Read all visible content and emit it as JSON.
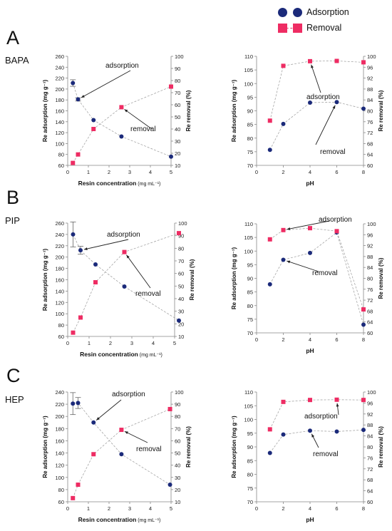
{
  "legend": {
    "adsorption": "Adsorption",
    "removal": "Removal",
    "adsorption_color": "#1b2a7a",
    "removal_color": "#ee2c63"
  },
  "rows": [
    {
      "letter": "A",
      "name": "BAPA"
    },
    {
      "letter": "B",
      "name": "PIP"
    },
    {
      "letter": "C",
      "name": "HEP"
    }
  ],
  "chart_data": [
    {
      "id": "A-left",
      "type": "line",
      "xlabel": "Resin concentration",
      "xlabel_unit": "(mg mL⁻¹)",
      "ylabel": "Re adsorption (mg g⁻¹)",
      "y2label": "Re removal (%)",
      "xlim": [
        0,
        5
      ],
      "xticks": [
        0,
        1,
        2,
        3,
        4,
        5
      ],
      "ylim": [
        60,
        260
      ],
      "yticks": [
        60,
        80,
        100,
        120,
        140,
        160,
        180,
        200,
        220,
        240,
        260
      ],
      "y2lim": [
        10,
        100
      ],
      "y2ticks": [
        10,
        20,
        30,
        40,
        50,
        60,
        70,
        80,
        90,
        100
      ],
      "series": [
        {
          "axis": "left",
          "x": [
            0.25,
            0.5,
            1.25,
            2.6,
            5.0
          ],
          "values": [
            211,
            181,
            143,
            113,
            76
          ],
          "err": [
            6,
            3,
            0,
            0,
            0
          ]
        },
        {
          "axis": "right",
          "x": [
            0.25,
            0.5,
            1.25,
            2.6,
            5.0
          ],
          "values": [
            12,
            19,
            40,
            58,
            75
          ]
        }
      ],
      "annotations": [
        {
          "text": "adsorption",
          "series": 0,
          "point": 1
        },
        {
          "text": "removal",
          "series": 1,
          "point": 3
        }
      ]
    },
    {
      "id": "A-right",
      "type": "line",
      "xlabel": "pH",
      "xlabel_unit": "",
      "ylabel": "Re adsorption (mg g⁻¹)",
      "y2label": "Re removal (%)",
      "xlim": [
        0,
        8
      ],
      "xticks": [
        0,
        2,
        4,
        6,
        8
      ],
      "ylim": [
        70,
        110
      ],
      "yticks": [
        70,
        75,
        80,
        85,
        90,
        95,
        100,
        105,
        110
      ],
      "y2lim": [
        60,
        100
      ],
      "y2ticks": [
        60,
        64,
        68,
        72,
        76,
        80,
        84,
        88,
        92,
        96,
        100
      ],
      "series": [
        {
          "axis": "left",
          "x": [
            1,
            2,
            4,
            6,
            8
          ],
          "values": [
            75.7,
            85.2,
            93.0,
            93.2,
            90.8
          ],
          "err": [
            0,
            0,
            0,
            0,
            0
          ]
        },
        {
          "axis": "right",
          "x": [
            1,
            2,
            4,
            6,
            8
          ],
          "values": [
            76.4,
            96.5,
            98.2,
            98.3,
            97.8
          ]
        }
      ],
      "annotations": [
        {
          "text": "adsorption",
          "series": 1,
          "point": 2
        },
        {
          "text": "removal",
          "series": 0,
          "point": 3
        }
      ]
    },
    {
      "id": "B-left",
      "type": "line",
      "xlabel": "Resin concentration",
      "xlabel_unit": "(mg mL⁻¹)",
      "ylabel": "Re adsorption (mg g⁻¹)",
      "y2label": "Re removal (%)",
      "xlim": [
        0,
        5
      ],
      "xticks": [
        0,
        1,
        2,
        3,
        4,
        5
      ],
      "ylim": [
        60,
        260
      ],
      "yticks": [
        60,
        80,
        100,
        120,
        140,
        160,
        180,
        200,
        220,
        240,
        260
      ],
      "y2lim": [
        10,
        100
      ],
      "y2ticks": [
        10,
        20,
        30,
        40,
        50,
        60,
        70,
        80,
        90,
        100
      ],
      "series": [
        {
          "axis": "left",
          "x": [
            0.25,
            0.6,
            1.3,
            2.65,
            5.2
          ],
          "values": [
            240,
            212,
            187,
            148,
            88
          ],
          "err": [
            22,
            7,
            0,
            0,
            0
          ]
        },
        {
          "axis": "right",
          "x": [
            0.25,
            0.6,
            1.3,
            2.65,
            5.2
          ],
          "values": [
            13,
            25,
            53,
            77,
            92
          ]
        }
      ],
      "annotations": [
        {
          "text": "adsorption",
          "series": 0,
          "point": 1
        },
        {
          "text": "removal",
          "series": 1,
          "point": 3
        }
      ]
    },
    {
      "id": "B-right",
      "type": "line",
      "xlabel": "pH",
      "xlabel_unit": "",
      "ylabel": "Re adsorption (mg g⁻¹)",
      "y2label": "Re removal (%)",
      "xlim": [
        0,
        8
      ],
      "xticks": [
        0,
        2,
        4,
        6,
        8
      ],
      "ylim": [
        70,
        110
      ],
      "yticks": [
        70,
        75,
        80,
        85,
        90,
        95,
        100,
        105,
        110
      ],
      "y2lim": [
        60,
        100
      ],
      "y2ticks": [
        60,
        64,
        68,
        72,
        76,
        80,
        84,
        88,
        92,
        96,
        100
      ],
      "series": [
        {
          "axis": "left",
          "x": [
            1,
            2,
            4,
            6,
            8
          ],
          "values": [
            87.8,
            96.8,
            99.3,
            106.8,
            73.0
          ],
          "err": [
            0,
            0,
            0,
            0,
            0
          ]
        },
        {
          "axis": "right",
          "x": [
            1,
            2,
            4,
            6,
            8
          ],
          "values": [
            94.3,
            97.7,
            98.4,
            97.3,
            68.6
          ]
        }
      ],
      "annotations": [
        {
          "text": "adsorption",
          "series": 1,
          "point": 1
        },
        {
          "text": "removal",
          "series": 0,
          "point": 1
        }
      ]
    },
    {
      "id": "C-left",
      "type": "line",
      "xlabel": "Resin concentration",
      "xlabel_unit": "(mg mL⁻¹)",
      "ylabel": "Re adsorption (mg g⁻¹)",
      "y2label": "Re removal (%)",
      "xlim": [
        0,
        5
      ],
      "xticks": [
        0,
        1,
        2,
        3,
        4,
        5
      ],
      "ylim": [
        60,
        240
      ],
      "yticks": [
        60,
        80,
        100,
        120,
        140,
        160,
        180,
        200,
        220,
        240
      ],
      "y2lim": [
        10,
        100
      ],
      "y2ticks": [
        10,
        20,
        30,
        40,
        50,
        60,
        70,
        80,
        90,
        100
      ],
      "series": [
        {
          "axis": "left",
          "x": [
            0.25,
            0.5,
            1.25,
            2.6,
            4.95
          ],
          "values": [
            221,
            222,
            190,
            138,
            88
          ],
          "err": [
            18,
            9,
            0,
            0,
            0
          ]
        },
        {
          "axis": "right",
          "x": [
            0.25,
            0.5,
            1.25,
            2.6,
            4.95
          ],
          "values": [
            13,
            24,
            49,
            69,
            86
          ]
        }
      ],
      "annotations": [
        {
          "text": "adsorption",
          "series": 0,
          "point": 2
        },
        {
          "text": "removal",
          "series": 1,
          "point": 3
        }
      ]
    },
    {
      "id": "C-right",
      "type": "line",
      "xlabel": "pH",
      "xlabel_unit": "",
      "ylabel": "Re adsorption (mg g⁻¹)",
      "y2label": "Re removal (%)",
      "xlim": [
        0,
        8
      ],
      "xticks": [
        0,
        2,
        4,
        6,
        8
      ],
      "ylim": [
        70,
        110
      ],
      "yticks": [
        70,
        75,
        80,
        85,
        90,
        95,
        100,
        105,
        110
      ],
      "y2lim": [
        60,
        100
      ],
      "y2ticks": [
        60,
        64,
        68,
        72,
        76,
        80,
        84,
        88,
        92,
        96,
        100
      ],
      "series": [
        {
          "axis": "left",
          "x": [
            1,
            2,
            4,
            6,
            8
          ],
          "values": [
            87.8,
            94.5,
            95.9,
            95.6,
            96.2
          ],
          "err": [
            0,
            0,
            0,
            0,
            0
          ]
        },
        {
          "axis": "right",
          "x": [
            1,
            2,
            4,
            6,
            8
          ],
          "values": [
            86.4,
            96.4,
            97.1,
            97.2,
            97.1
          ]
        }
      ],
      "annotations": [
        {
          "text": "adsorption",
          "series": 1,
          "point": 3
        },
        {
          "text": "removal",
          "series": 0,
          "point": 2
        }
      ]
    }
  ]
}
